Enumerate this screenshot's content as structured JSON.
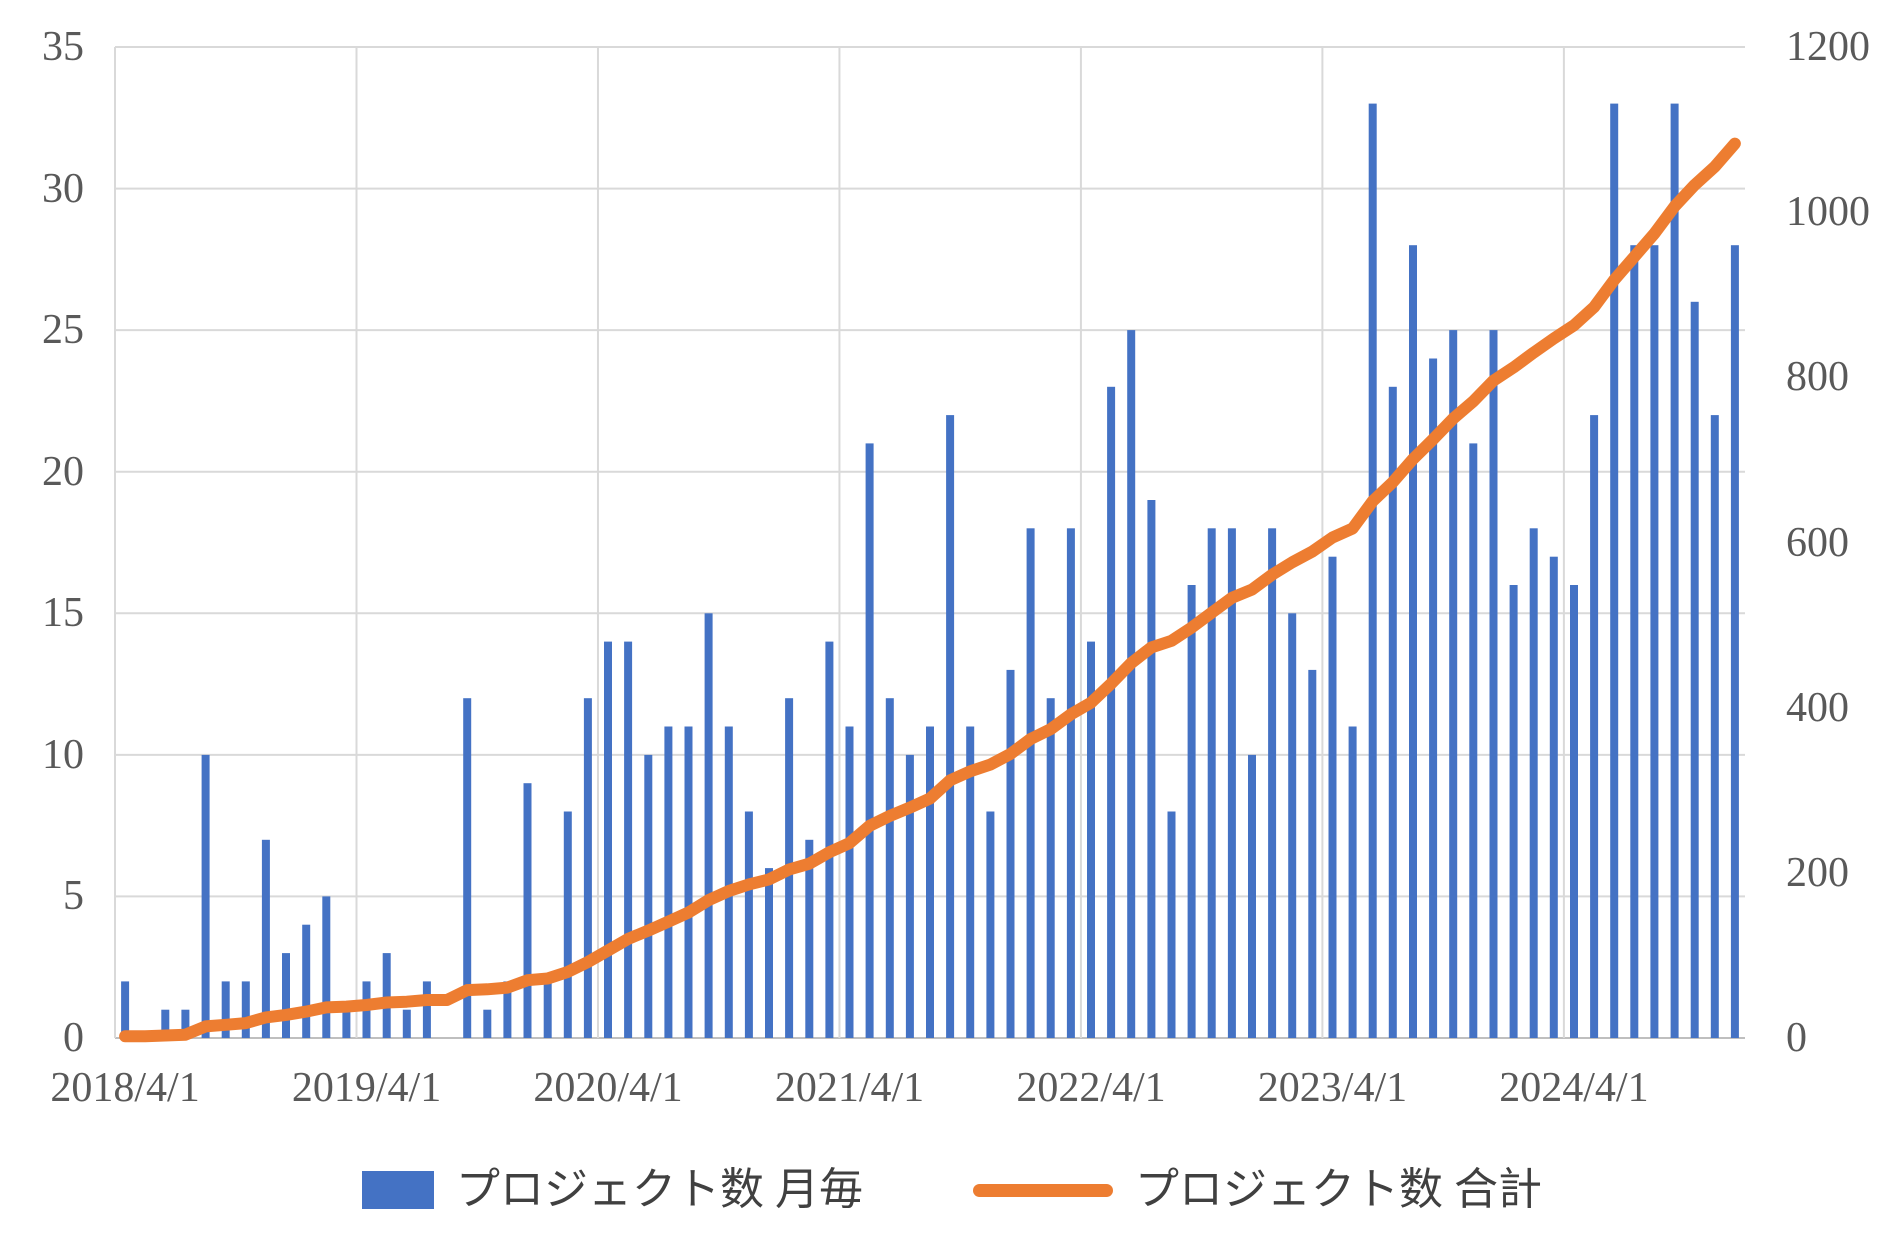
{
  "chart_data": {
    "type": "bar+line",
    "title": "",
    "xlabel": "",
    "ylabel_left": "",
    "ylabel_right": "",
    "grid": true,
    "legend_position": "bottom",
    "x_tick_labels": [
      "2018/4/1",
      "2019/4/1",
      "2020/4/1",
      "2021/4/1",
      "2022/4/1",
      "2023/4/1",
      "2024/4/1"
    ],
    "categories": [
      "2018/4",
      "2018/5",
      "2018/6",
      "2018/7",
      "2018/8",
      "2018/9",
      "2018/10",
      "2018/11",
      "2018/12",
      "2019/1",
      "2019/2",
      "2019/3",
      "2019/4",
      "2019/5",
      "2019/6",
      "2019/7",
      "2019/8",
      "2019/9",
      "2019/10",
      "2019/11",
      "2019/12",
      "2020/1",
      "2020/2",
      "2020/3",
      "2020/4",
      "2020/5",
      "2020/6",
      "2020/7",
      "2020/8",
      "2020/9",
      "2020/10",
      "2020/11",
      "2020/12",
      "2021/1",
      "2021/2",
      "2021/3",
      "2021/4",
      "2021/5",
      "2021/6",
      "2021/7",
      "2021/8",
      "2021/9",
      "2021/10",
      "2021/11",
      "2021/12",
      "2022/1",
      "2022/2",
      "2022/3",
      "2022/4",
      "2022/5",
      "2022/6",
      "2022/7",
      "2022/8",
      "2022/9",
      "2022/10",
      "2022/11",
      "2022/12",
      "2023/1",
      "2023/2",
      "2023/3",
      "2023/4",
      "2023/5",
      "2023/6",
      "2023/7",
      "2023/8",
      "2023/9",
      "2023/10",
      "2023/11",
      "2023/12",
      "2024/1",
      "2024/2",
      "2024/3",
      "2024/4",
      "2024/5",
      "2024/6",
      "2024/7",
      "2024/8",
      "2024/9",
      "2024/10",
      "2024/11",
      "2024/12"
    ],
    "series": [
      {
        "name": "プロジェクト数 月毎",
        "type": "bar",
        "axis": "left",
        "color": "#4472C4",
        "values": [
          2,
          0,
          1,
          1,
          10,
          2,
          2,
          7,
          3,
          4,
          5,
          1,
          2,
          3,
          1,
          2,
          0,
          12,
          1,
          2,
          9,
          2,
          8,
          12,
          14,
          14,
          10,
          11,
          11,
          15,
          11,
          8,
          6,
          12,
          7,
          14,
          11,
          21,
          12,
          10,
          11,
          22,
          11,
          8,
          13,
          18,
          12,
          18,
          14,
          23,
          25,
          19,
          8,
          16,
          18,
          18,
          10,
          18,
          15,
          13,
          17,
          11,
          33,
          23,
          28,
          24,
          25,
          21,
          25,
          16,
          18,
          17,
          16,
          22,
          33,
          28,
          28,
          33,
          26,
          22,
          28
        ]
      },
      {
        "name": "プロジェクト数 合計",
        "type": "line",
        "axis": "right",
        "color": "#ED7D31",
        "values": [
          2,
          2,
          3,
          4,
          14,
          16,
          18,
          25,
          28,
          32,
          37,
          38,
          40,
          43,
          44,
          46,
          46,
          58,
          59,
          61,
          70,
          72,
          80,
          92,
          106,
          120,
          130,
          141,
          152,
          167,
          178,
          186,
          192,
          204,
          211,
          225,
          236,
          257,
          269,
          279,
          290,
          312,
          323,
          331,
          344,
          362,
          374,
          392,
          406,
          429,
          454,
          473,
          481,
          497,
          515,
          533,
          543,
          561,
          576,
          589,
          606,
          617,
          650,
          673,
          701,
          725,
          750,
          771,
          796,
          812,
          830,
          847,
          863,
          885,
          918,
          946,
          974,
          1007,
          1033,
          1055,
          1083
        ]
      }
    ],
    "axes": {
      "left": {
        "min": 0,
        "max": 35,
        "step": 5,
        "ticks": [
          0,
          5,
          10,
          15,
          20,
          25,
          30,
          35
        ]
      },
      "right": {
        "min": 0,
        "max": 1200,
        "step": 200,
        "ticks": [
          0,
          200,
          400,
          600,
          800,
          1000,
          1200
        ]
      }
    }
  },
  "colors": {
    "bar": "#4472C4",
    "line": "#ED7D31",
    "gridline": "#D9D9D9",
    "axis_line": "#BFBFBF",
    "tick_text": "#595959",
    "legend_text": "#404040",
    "background": "#FFFFFF"
  }
}
